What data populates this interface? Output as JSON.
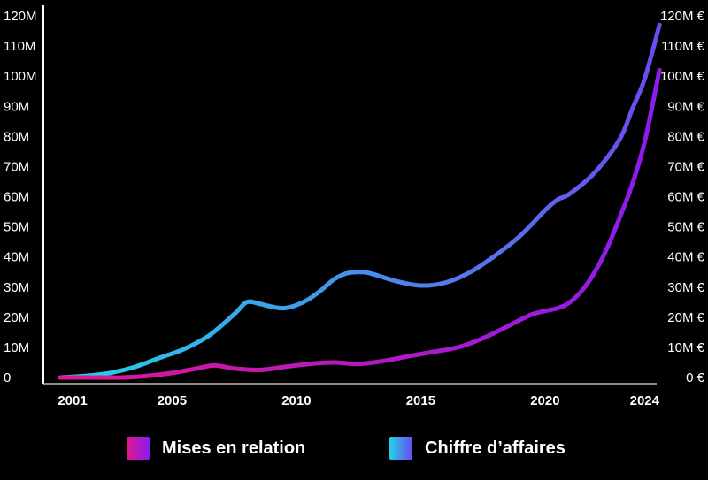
{
  "chart_data": {
    "type": "line",
    "x_ticks": [
      "2001",
      "2005",
      "2010",
      "2015",
      "2020",
      "2024"
    ],
    "y_left": {
      "min": 0,
      "max": 120,
      "ticks": [
        "0",
        "10M",
        "20M",
        "30M",
        "40M",
        "50M",
        "60M",
        "70M",
        "80M",
        "90M",
        "100M",
        "110M",
        "120M"
      ]
    },
    "y_right": {
      "min": 0,
      "max": 120,
      "ticks": [
        "0 €",
        "10M €",
        "20M €",
        "30M €",
        "40M €",
        "50M €",
        "60M €",
        "70M €",
        "80M €",
        "90M €",
        "100M €",
        "110M €",
        "120M €"
      ]
    },
    "grid": false,
    "legend_position": "bottom",
    "series": [
      {
        "name": "Mises en relation",
        "axis": "left",
        "color_start": "#e0178c",
        "color_end": "#8a1cf0",
        "x": [
          2000.5,
          2002,
          2003,
          2004,
          2005,
          2006,
          2006.7,
          2007.5,
          2008.5,
          2009.5,
          2010.5,
          2011.5,
          2012.5,
          2013.5,
          2014.5,
          2015.5,
          2016.5,
          2017.5,
          2018.5,
          2019.5,
          2020.5,
          2021,
          2021.5,
          2022,
          2022.5,
          2023,
          2023.5,
          2024,
          2024.6
        ],
        "values": [
          0,
          0,
          0,
          0.5,
          1.5,
          3,
          4,
          3,
          2.5,
          3.5,
          4.5,
          5,
          4.5,
          5.5,
          7,
          8.5,
          10,
          13,
          17,
          21,
          23,
          25,
          29,
          35,
          43,
          53,
          64,
          78,
          102
        ]
      },
      {
        "name": "Chiffre d’affaires",
        "axis": "right",
        "color_start": "#22d3e6",
        "color_end": "#6a4cf0",
        "x": [
          2000.5,
          2001.5,
          2002.5,
          2003.5,
          2004.5,
          2005.5,
          2006.5,
          2007.5,
          2008,
          2008.5,
          2009,
          2009.5,
          2010,
          2010.5,
          2011,
          2011.5,
          2012,
          2012.5,
          2013,
          2014,
          2015,
          2016,
          2017,
          2018,
          2019,
          2020,
          2020.5,
          2021,
          2022,
          2023,
          2023.5,
          2024,
          2024.6
        ],
        "values": [
          0,
          0.5,
          1.5,
          3.5,
          6.5,
          9.5,
          14,
          21,
          25,
          24.5,
          23.5,
          23,
          24,
          26,
          29,
          32.5,
          34.5,
          35,
          34.5,
          32,
          30.5,
          31.5,
          35,
          40.5,
          47,
          55.5,
          59,
          61,
          68,
          79,
          89,
          99,
          117
        ]
      }
    ]
  }
}
